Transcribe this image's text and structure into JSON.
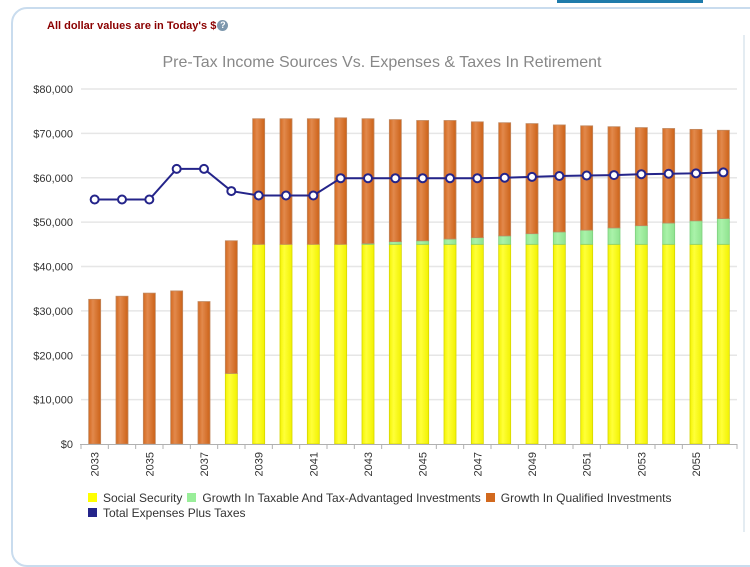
{
  "page": {
    "currency_note": "All dollar values are in Today's $",
    "help_icon_glyph": "?"
  },
  "chart_data": {
    "type": "bar",
    "stacked": true,
    "title": "Pre-Tax Income Sources Vs. Expenses & Taxes In Retirement",
    "xlabel": "",
    "ylabel": "",
    "ylim": [
      0,
      80000
    ],
    "yticks": [
      0,
      10000,
      20000,
      30000,
      40000,
      50000,
      60000,
      70000,
      80000
    ],
    "ytick_labels": [
      "$0",
      "$10,000",
      "$20,000",
      "$30,000",
      "$40,000",
      "$50,000",
      "$60,000",
      "$70,000",
      "$80,000"
    ],
    "grid": true,
    "legend_position": "bottom-left",
    "categories": [
      "2033",
      "2034",
      "2035",
      "2036",
      "2037",
      "2038",
      "2039",
      "2040",
      "2041",
      "2042",
      "2043",
      "2044",
      "2045",
      "2046",
      "2047",
      "2048",
      "2049",
      "2050",
      "2051",
      "2052",
      "2053",
      "2054",
      "2055",
      "2056"
    ],
    "xtick_labels": [
      "2033",
      "",
      "2035",
      "",
      "2037",
      "",
      "2039",
      "",
      "2041",
      "",
      "2043",
      "",
      "2045",
      "",
      "2047",
      "",
      "2049",
      "",
      "2051",
      "",
      "2053",
      "",
      "2055",
      ""
    ],
    "series": [
      {
        "name": "Social Security",
        "type": "bar",
        "color": "#ffff00",
        "values": [
          0,
          0,
          0,
          0,
          0,
          15900,
          45000,
          45000,
          45000,
          45000,
          45000,
          45000,
          45000,
          45000,
          45000,
          45000,
          45000,
          45000,
          45000,
          45000,
          45000,
          45000,
          45000,
          45000
        ]
      },
      {
        "name": "Growth In Taxable And Tax-Advantaged Investments",
        "type": "bar",
        "color": "#99ee99",
        "values": [
          0,
          0,
          0,
          0,
          0,
          0,
          0,
          0,
          0,
          0,
          200,
          600,
          800,
          1200,
          1500,
          1900,
          2400,
          2800,
          3200,
          3700,
          4200,
          4800,
          5300,
          5800
        ]
      },
      {
        "name": "Growth In Qualified Investments",
        "type": "bar",
        "color": "#d2691e",
        "values": [
          32600,
          33300,
          34000,
          34500,
          32100,
          29900,
          28300,
          28300,
          28300,
          28500,
          28100,
          27500,
          27100,
          26700,
          26100,
          25500,
          24800,
          24100,
          23500,
          22800,
          22100,
          21300,
          20600,
          19900
        ]
      },
      {
        "name": "Total Expenses Plus Taxes",
        "type": "line",
        "color": "#24248a",
        "values": [
          55100,
          55100,
          55100,
          62000,
          62000,
          57000,
          56000,
          56000,
          56000,
          59900,
          59900,
          59900,
          59900,
          59900,
          59900,
          60000,
          60200,
          60400,
          60500,
          60600,
          60800,
          60900,
          61000,
          61200
        ]
      }
    ]
  }
}
